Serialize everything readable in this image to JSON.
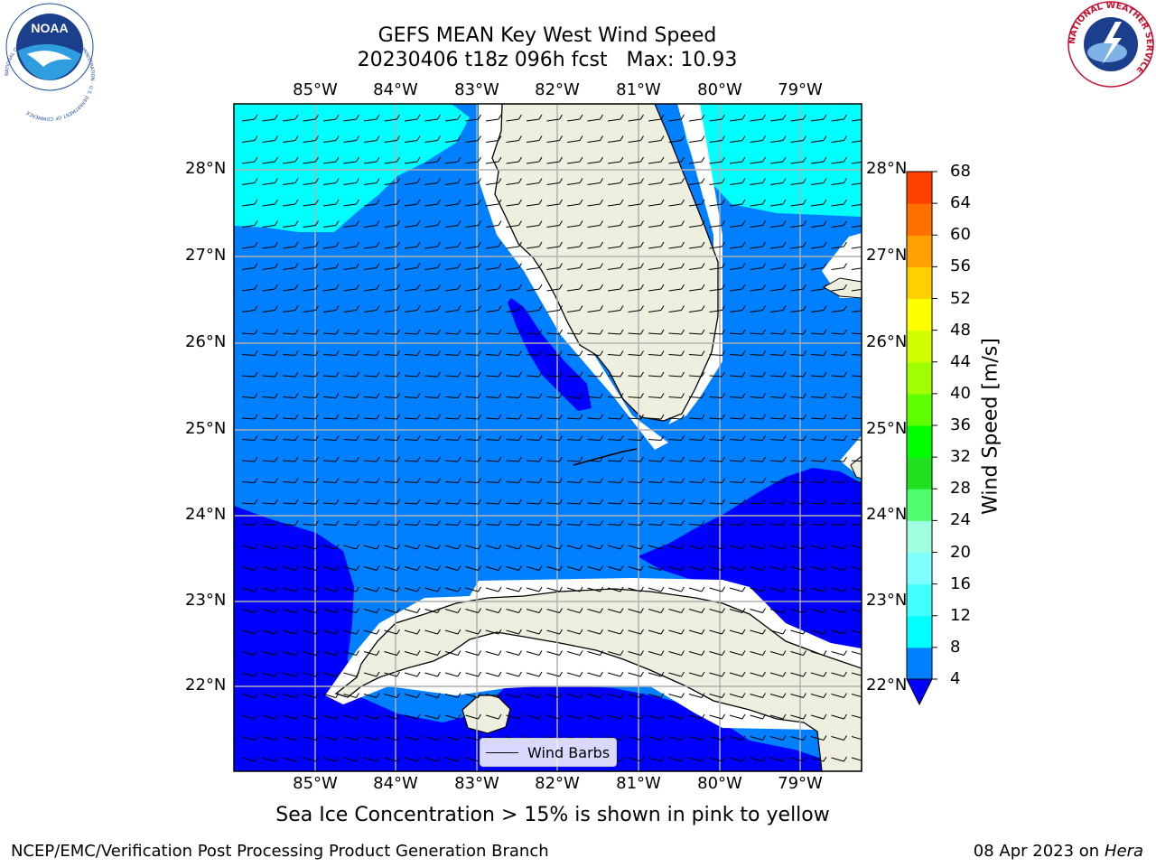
{
  "header": {
    "title_line1": "GEFS MEAN Key West Wind Speed",
    "title_line2": "20230406 t18z 096h fcst   Max: 10.93"
  },
  "logos": {
    "noaa_text": "NOAA",
    "noaa_ring": "NATIONAL OCEANIC AND ATMOSPHERIC ADMINISTRATION · U.S. DEPARTMENT OF COMMERCE",
    "nws_ring": "NATIONAL WEATHER SERVICE"
  },
  "map": {
    "lon_labels": [
      "85°W",
      "84°W",
      "83°W",
      "82°W",
      "81°W",
      "80°W",
      "79°W"
    ],
    "lat_labels": [
      "28°N",
      "27°N",
      "26°N",
      "25°N",
      "24°N",
      "23°N",
      "22°N"
    ],
    "lon_range": [
      -86.0,
      -78.3
    ],
    "lat_range": [
      21.05,
      28.8
    ],
    "wind_direction": "from east",
    "fill_colors": {
      "cyan_8_12": "#00ffff",
      "blue_4_8": "#0080ff",
      "dark_blue_lt4": "#0000ff",
      "land": "#efefdf"
    },
    "legend_label": "Wind Barbs"
  },
  "colorbar": {
    "label": "Wind Speed [m/s]",
    "ticks": [
      "4",
      "8",
      "12",
      "16",
      "20",
      "24",
      "28",
      "32",
      "36",
      "40",
      "44",
      "48",
      "52",
      "56",
      "60",
      "64",
      "68"
    ],
    "colors": [
      "#0080ff",
      "#00ffff",
      "#40ffff",
      "#80ffff",
      "#a0ffe0",
      "#50ff70",
      "#20e020",
      "#00ff00",
      "#60ff00",
      "#a0ff00",
      "#d0ff00",
      "#ffff00",
      "#ffd000",
      "#ffa000",
      "#ff7000",
      "#ff4000",
      "#ff0000"
    ],
    "extend_color": "#0000ff"
  },
  "footer": {
    "note": "Sea Ice Concentration > 15% is shown in pink to yellow",
    "credit_left": "NCEP/EMC/Verification Post Processing Product Generation Branch",
    "credit_right_date": "08 Apr 2023 on",
    "credit_right_host": "Hera"
  }
}
